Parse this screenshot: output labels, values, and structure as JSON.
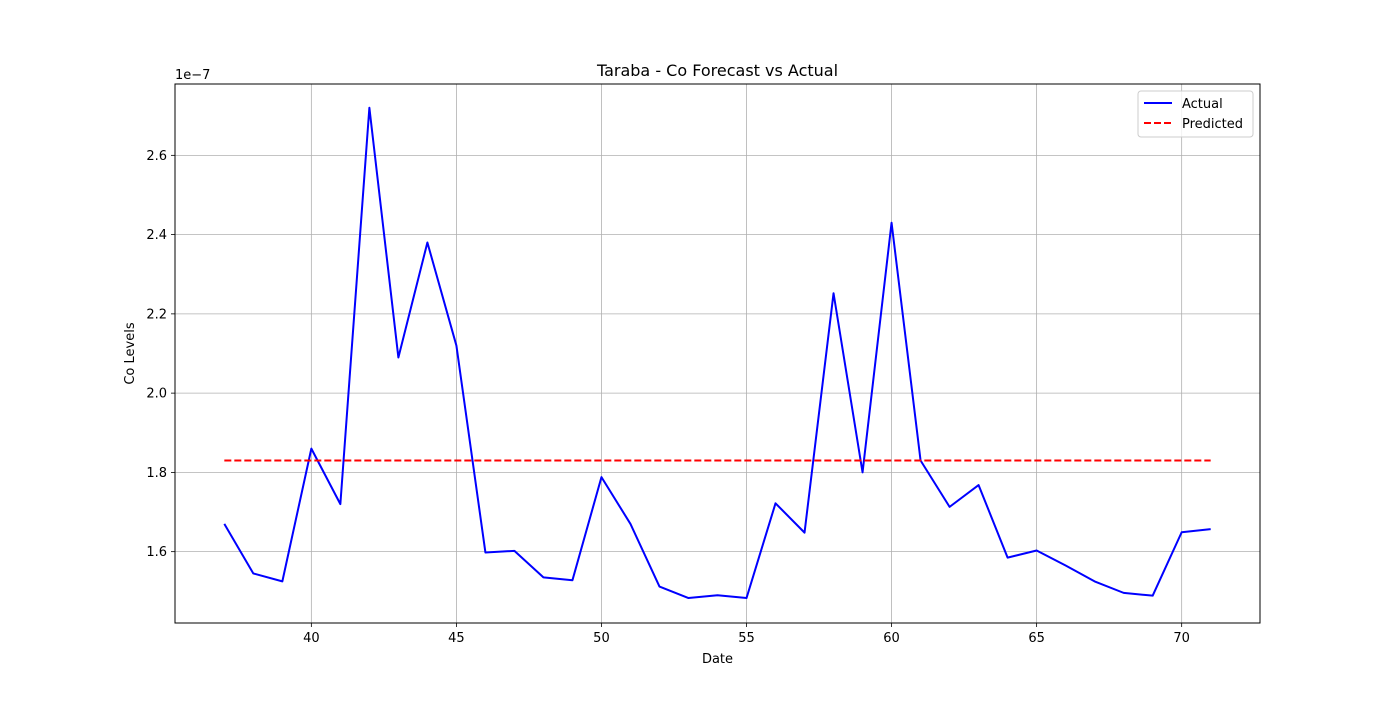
{
  "chart_data": {
    "type": "line",
    "title": "Taraba - Co Forecast vs Actual",
    "xlabel": "Date",
    "ylabel": "Co Levels",
    "y_scale_label": "1e−7",
    "x_ticks": [
      40,
      45,
      50,
      55,
      60,
      65,
      70
    ],
    "y_ticks": [
      1.6,
      1.8,
      2.0,
      2.2,
      2.4,
      2.6
    ],
    "y_tick_labels": [
      "1.6",
      "1.8",
      "2.0",
      "2.2",
      "2.4",
      "2.6"
    ],
    "xlim": [
      35.3,
      72.7
    ],
    "ylim": [
      1.42,
      2.78
    ],
    "grid": true,
    "legend_position": "upper right",
    "series": [
      {
        "name": "Actual",
        "color": "#0000ff",
        "style": "solid",
        "x": [
          37,
          38,
          39,
          40,
          41,
          42,
          43,
          44,
          45,
          46,
          47,
          48,
          49,
          50,
          51,
          52,
          53,
          54,
          55,
          56,
          57,
          58,
          59,
          60,
          61,
          62,
          63,
          64,
          65,
          66,
          67,
          68,
          69,
          70,
          71
        ],
        "y": [
          1.67,
          1.545,
          1.525,
          1.86,
          1.72,
          2.72,
          2.09,
          2.38,
          2.12,
          1.598,
          1.602,
          1.535,
          1.528,
          1.788,
          1.67,
          1.512,
          1.483,
          1.49,
          1.483,
          1.722,
          1.648,
          2.252,
          1.8,
          2.43,
          1.83,
          1.713,
          1.768,
          1.585,
          1.603,
          1.565,
          1.525,
          1.496,
          1.489,
          1.649,
          1.657
        ]
      },
      {
        "name": "Predicted",
        "color": "#ff0000",
        "style": "dashed",
        "x": [
          37,
          71
        ],
        "y": [
          1.83,
          1.83
        ]
      }
    ]
  }
}
